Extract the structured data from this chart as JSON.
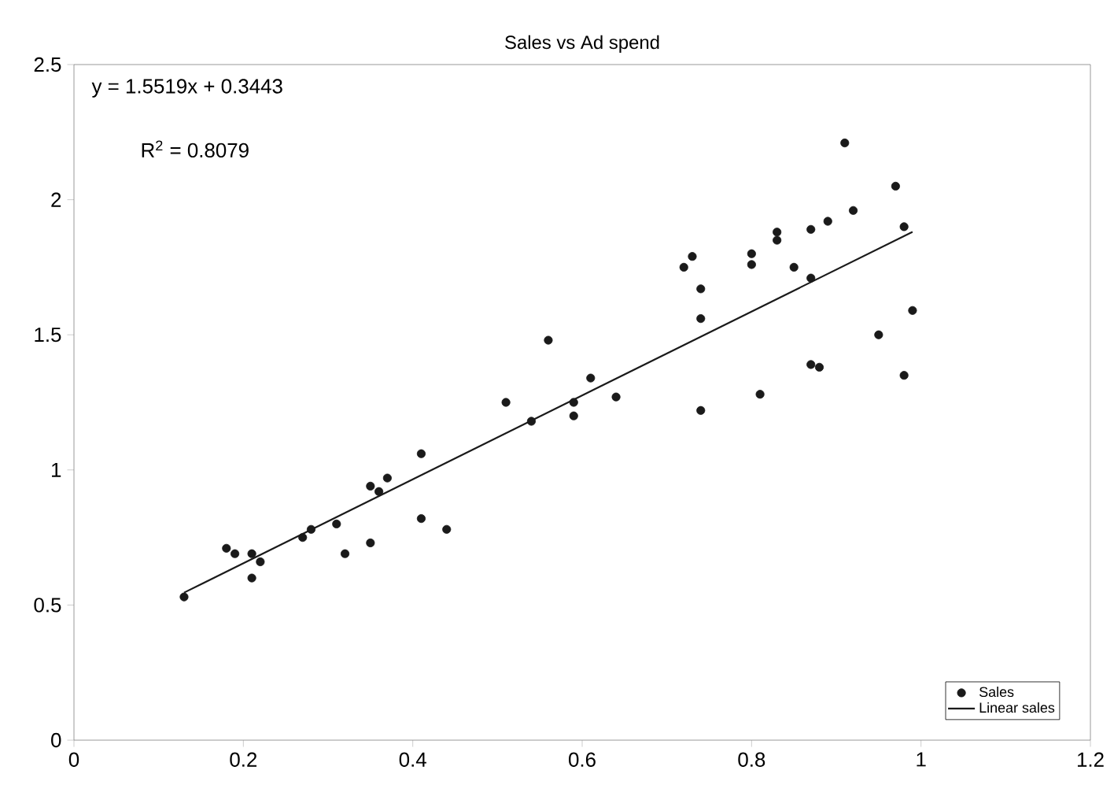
{
  "chart_data": {
    "type": "scatter",
    "title": "Sales vs Ad spend",
    "xlim": [
      0,
      1.2
    ],
    "ylim": [
      0,
      2.5
    ],
    "xticks": [
      0,
      0.2,
      0.4,
      0.6,
      0.8,
      1,
      1.2
    ],
    "yticks": [
      0,
      0.5,
      1,
      1.5,
      2,
      2.5
    ],
    "grid": false,
    "legend": "bottom right",
    "annotations": [
      "y = 1.5519x + 0.3443",
      "R$^{2}$ = 0.8079"
    ],
    "series": [
      {
        "name": "Sales",
        "marker": "circle",
        "color": "#1a1a1a",
        "x": [
          0.13,
          0.18,
          0.19,
          0.21,
          0.21,
          0.22,
          0.27,
          0.28,
          0.31,
          0.32,
          0.35,
          0.35,
          0.36,
          0.37,
          0.41,
          0.41,
          0.44,
          0.51,
          0.54,
          0.56,
          0.59,
          0.59,
          0.61,
          0.64,
          0.72,
          0.73,
          0.74,
          0.74,
          0.74,
          0.8,
          0.8,
          0.81,
          0.83,
          0.83,
          0.85,
          0.87,
          0.87,
          0.87,
          0.88,
          0.89,
          0.91,
          0.92,
          0.95,
          0.97,
          0.98,
          0.98,
          0.99
        ],
        "values": [
          0.53,
          0.71,
          0.69,
          0.69,
          0.6,
          0.66,
          0.75,
          0.78,
          0.8,
          0.69,
          0.73,
          0.94,
          0.92,
          0.97,
          1.06,
          0.82,
          0.78,
          1.25,
          1.18,
          1.48,
          1.25,
          1.2,
          1.34,
          1.27,
          1.75,
          1.79,
          1.67,
          1.56,
          1.22,
          1.8,
          1.76,
          1.28,
          1.88,
          1.85,
          1.75,
          1.89,
          1.71,
          1.39,
          1.38,
          1.92,
          2.21,
          1.96,
          1.5,
          2.05,
          1.9,
          1.35,
          1.59
        ]
      },
      {
        "name": "Linear sales",
        "type": "line",
        "marker": "none",
        "color": "#1a1a1a",
        "x": [
          0.13,
          0.99
        ],
        "values": [
          0.546,
          1.881
        ]
      }
    ]
  }
}
